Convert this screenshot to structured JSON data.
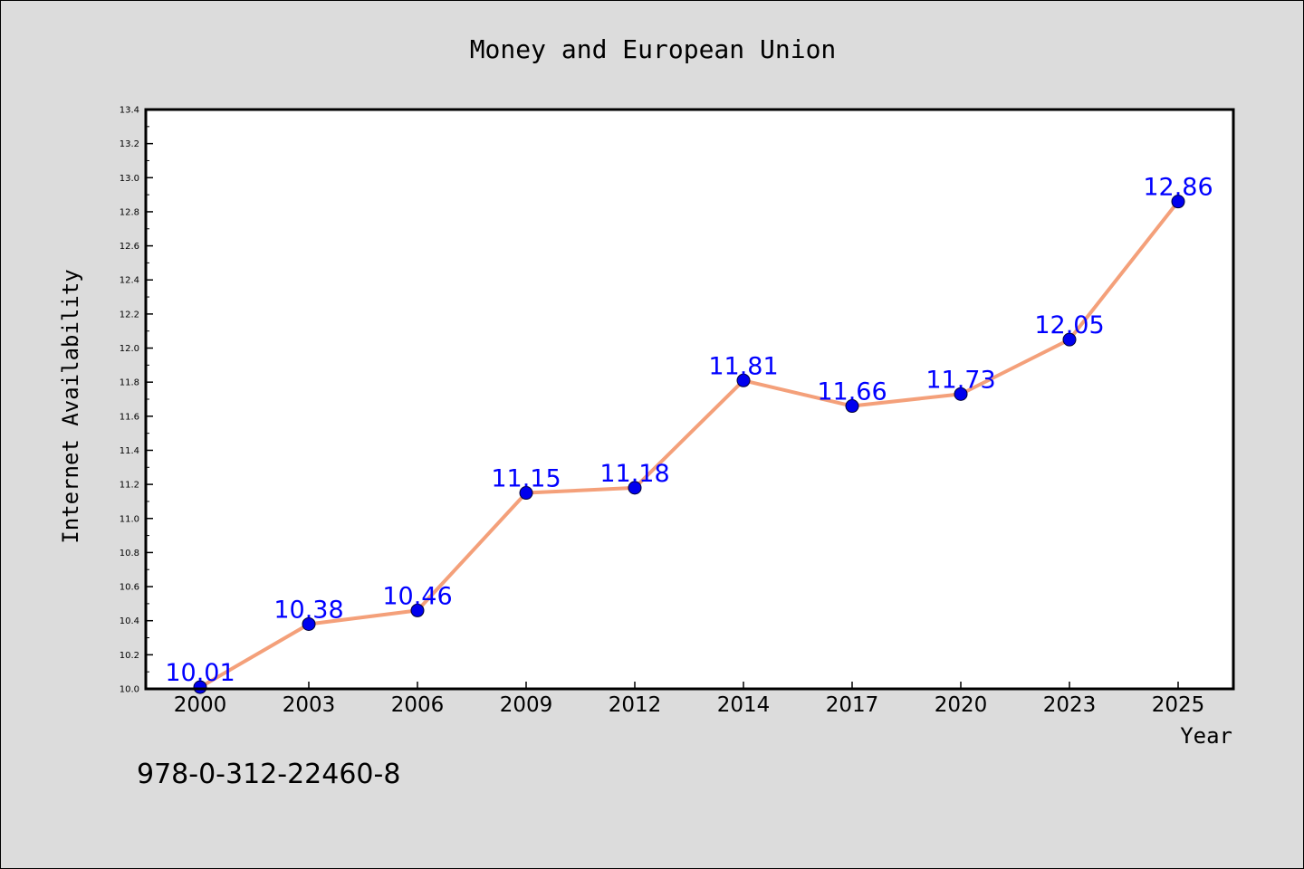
{
  "chart_data": {
    "type": "line",
    "title": "Money and European Union",
    "xlabel": "Year",
    "ylabel": "Internet Availability",
    "categories": [
      "2000",
      "2003",
      "2006",
      "2009",
      "2012",
      "2014",
      "2017",
      "2020",
      "2023",
      "2025"
    ],
    "series": [
      {
        "values": [
          10.01,
          10.38,
          10.46,
          11.15,
          11.18,
          11.81,
          11.66,
          11.73,
          12.05,
          12.86
        ]
      }
    ],
    "data_labels": [
      "10.01",
      "10.38",
      "10.46",
      "11.15",
      "11.18",
      "11.81",
      "11.66",
      "11.73",
      "12.05",
      "12.86"
    ],
    "ylim": [
      10.0,
      13.4
    ],
    "y_ticks": [
      "10.0",
      "10.2",
      "10.4",
      "10.6",
      "10.8",
      "11.0",
      "11.2",
      "11.4",
      "11.6",
      "11.8",
      "12.0",
      "12.2",
      "12.4",
      "12.6",
      "12.8",
      "13.0",
      "13.2",
      "13.4"
    ],
    "grid": false,
    "legend": "none",
    "colors": {
      "line": "#f4a07a",
      "marker": "#0000ee",
      "data_label": "#0000ff",
      "background": "#dcdcdc",
      "plot_background": "#ffffff"
    }
  },
  "footer_text": "978-0-312-22460-8"
}
